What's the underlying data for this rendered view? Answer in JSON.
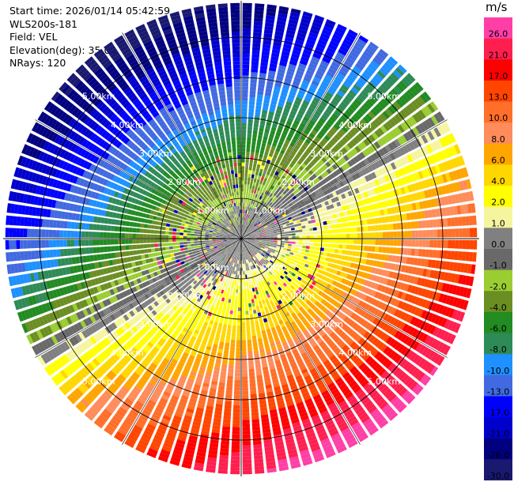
{
  "header": {
    "start_time": "Start time: 2026/01/14 05:42:59",
    "instrument": "WLS200s-181",
    "field": "Field: VEL",
    "elevation": "Elevation(deg): 35.00",
    "nrays": "NRays: 120"
  },
  "colorbar": {
    "unit": "m/s",
    "bins": [
      {
        "label": "26.0",
        "color": "#ff3fa6"
      },
      {
        "label": "21.0",
        "color": "#ff1f4f"
      },
      {
        "label": "17.0",
        "color": "#ff0000"
      },
      {
        "label": "13.0",
        "color": "#ff4500"
      },
      {
        "label": "10.0",
        "color": "#ff6f2a"
      },
      {
        "label": "8.0",
        "color": "#ff8c5a"
      },
      {
        "label": "6.0",
        "color": "#ffa500"
      },
      {
        "label": "4.0",
        "color": "#ffd700"
      },
      {
        "label": "2.0",
        "color": "#ffff00"
      },
      {
        "label": "1.0",
        "color": "#f5f5a0"
      },
      {
        "label": "0.0",
        "color": "#808080"
      },
      {
        "label": "-1.0",
        "color": "#696969"
      },
      {
        "label": "-2.0",
        "color": "#9acd32"
      },
      {
        "label": "-4.0",
        "color": "#6b8e23"
      },
      {
        "label": "-6.0",
        "color": "#228b22"
      },
      {
        "label": "-8.0",
        "color": "#2e8b57"
      },
      {
        "label": "-10.0",
        "color": "#1e90ff"
      },
      {
        "label": "-13.0",
        "color": "#4169e1"
      },
      {
        "label": "-17.0",
        "color": "#0000ff"
      },
      {
        "label": "-21.0",
        "color": "#0000cd"
      },
      {
        "label": "-26.0",
        "color": "#000080"
      },
      {
        "label": "-30.0",
        "color": "#191970"
      }
    ]
  },
  "chart_data": {
    "type": "heatmap",
    "field": "VEL",
    "units": "m/s",
    "nrays": 120,
    "elevation_deg": 35.0,
    "range_rings_km": [
      1,
      2,
      3,
      4,
      5
    ],
    "range_labels": [
      "1.00km",
      "2.00km",
      "3.00km",
      "4.00km",
      "5.00km"
    ],
    "max_range_km": 5.9,
    "pattern": "dipole: negative (toward) velocities to the north/west, positive (away) velocities to the south/east",
    "dipole_axis_deg": 330,
    "velocity_at_ring_km": {
      "1": 1.5,
      "2": 4.0,
      "3": 8.0,
      "4": 13.0,
      "5": 20.0
    },
    "speckle_range_km": [
      0.4,
      2.2
    ]
  }
}
